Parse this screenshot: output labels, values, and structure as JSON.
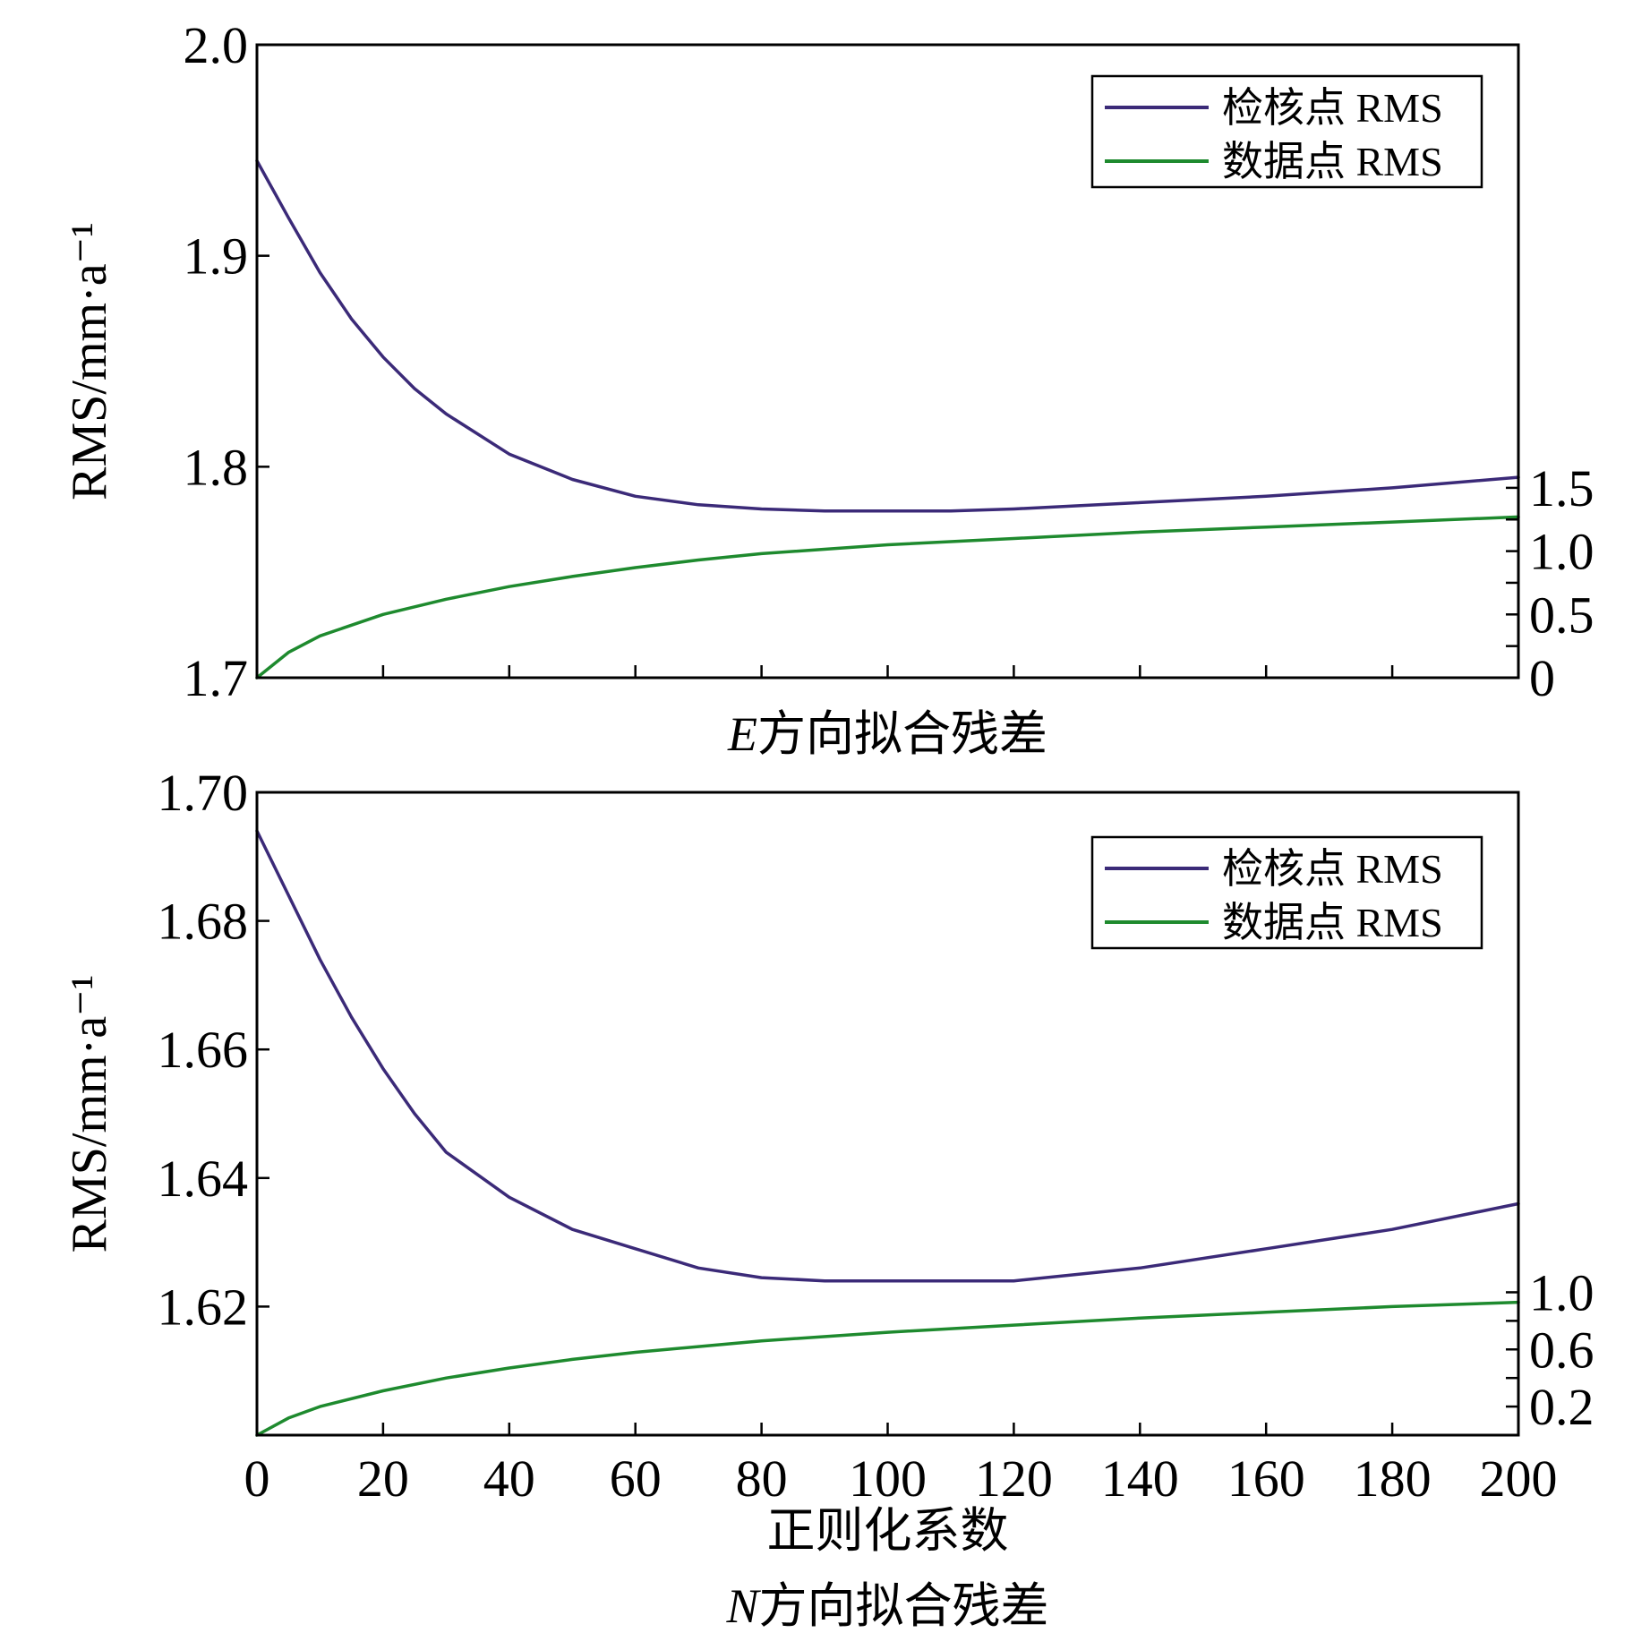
{
  "chart_data": [
    {
      "type": "line",
      "caption": "E方向拟合残差",
      "caption_italic_prefix": "E",
      "caption_rest": "方向拟合残差",
      "ylabel": "RMS/mm·a⁻¹",
      "xlim": [
        0,
        200
      ],
      "x_ticks": [
        0,
        20,
        40,
        60,
        80,
        100,
        120,
        140,
        160,
        180,
        200
      ],
      "x_tick_labels_shown": false,
      "ylim": [
        1.7,
        2.0
      ],
      "y_ticks": [
        1.7,
        1.8,
        1.9,
        2.0
      ],
      "y_tick_labels": [
        "1.7",
        "1.8",
        "1.9",
        "2.0"
      ],
      "y2lim": [
        0,
        5
      ],
      "y2_ticks": [
        0,
        0.5,
        1.0,
        1.5
      ],
      "y2_tick_labels": [
        "0",
        "0.5",
        "1.0",
        "1.5"
      ],
      "legend_position": "top-right",
      "series": [
        {
          "name": "检核点 RMS",
          "axis": "left",
          "color": "#3b2a78",
          "x": [
            0,
            5,
            10,
            15,
            20,
            25,
            30,
            40,
            50,
            60,
            70,
            80,
            90,
            100,
            110,
            120,
            140,
            160,
            180,
            200
          ],
          "y": [
            1.945,
            1.918,
            1.892,
            1.87,
            1.852,
            1.837,
            1.825,
            1.806,
            1.794,
            1.786,
            1.782,
            1.78,
            1.779,
            1.779,
            1.779,
            1.78,
            1.783,
            1.786,
            1.79,
            1.795
          ]
        },
        {
          "name": "数据点 RMS",
          "axis": "right",
          "color": "#1e8a2e",
          "x": [
            0,
            5,
            10,
            20,
            30,
            40,
            50,
            60,
            70,
            80,
            100,
            120,
            140,
            160,
            180,
            200
          ],
          "y": [
            0.0,
            0.2,
            0.33,
            0.5,
            0.62,
            0.72,
            0.8,
            0.87,
            0.93,
            0.98,
            1.05,
            1.1,
            1.15,
            1.19,
            1.23,
            1.27
          ]
        }
      ]
    },
    {
      "type": "line",
      "caption": "N方向拟合残差",
      "caption_italic_prefix": "N",
      "caption_rest": "方向拟合残差",
      "ylabel": "RMS/mm·a⁻¹",
      "xlabel": "正则化系数",
      "xlim": [
        0,
        200
      ],
      "x_ticks": [
        0,
        20,
        40,
        60,
        80,
        100,
        120,
        140,
        160,
        180,
        200
      ],
      "x_tick_labels": [
        "0",
        "20",
        "40",
        "60",
        "80",
        "100",
        "120",
        "140",
        "160",
        "180",
        "200"
      ],
      "ylim": [
        1.6,
        1.7
      ],
      "y_ticks": [
        1.62,
        1.64,
        1.66,
        1.68,
        1.7
      ],
      "y_tick_labels": [
        "1.62",
        "1.64",
        "1.66",
        "1.68",
        "1.70"
      ],
      "y2lim": [
        0,
        4.5
      ],
      "y2_ticks": [
        0.2,
        0.6,
        1.0
      ],
      "y2_tick_labels": [
        "0.2",
        "0.6",
        "1.0"
      ],
      "legend_position": "top-right",
      "series": [
        {
          "name": "检核点 RMS",
          "axis": "left",
          "color": "#3b2a78",
          "x": [
            0,
            5,
            10,
            15,
            20,
            25,
            30,
            40,
            50,
            60,
            70,
            80,
            90,
            100,
            110,
            120,
            140,
            160,
            180,
            200
          ],
          "y": [
            1.694,
            1.684,
            1.674,
            1.665,
            1.657,
            1.65,
            1.644,
            1.637,
            1.632,
            1.629,
            1.626,
            1.6245,
            1.624,
            1.624,
            1.624,
            1.624,
            1.626,
            1.629,
            1.632,
            1.636
          ]
        },
        {
          "name": "数据点 RMS",
          "axis": "right",
          "color": "#1e8a2e",
          "x": [
            0,
            5,
            10,
            20,
            30,
            40,
            50,
            60,
            70,
            80,
            100,
            120,
            140,
            160,
            180,
            200
          ],
          "y": [
            0.0,
            0.12,
            0.2,
            0.31,
            0.4,
            0.47,
            0.53,
            0.58,
            0.62,
            0.66,
            0.72,
            0.77,
            0.82,
            0.86,
            0.9,
            0.93
          ]
        }
      ]
    }
  ]
}
